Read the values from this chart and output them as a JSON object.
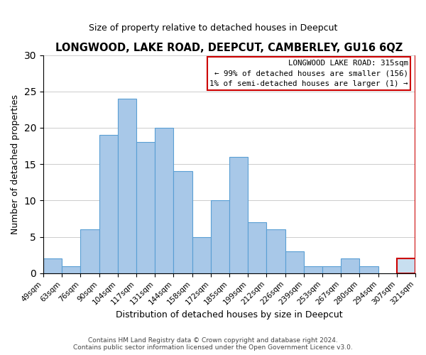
{
  "title": "LONGWOOD, LAKE ROAD, DEEPCUT, CAMBERLEY, GU16 6QZ",
  "subtitle": "Size of property relative to detached houses in Deepcut",
  "xlabel": "Distribution of detached houses by size in Deepcut",
  "ylabel": "Number of detached properties",
  "bar_color": "#a8c8e8",
  "bar_edge_color": "#5a9fd4",
  "highlight_bar_color": "#c8dff0",
  "highlight_bar_edge_color": "#cc0000",
  "bin_labels": [
    "49sqm",
    "63sqm",
    "76sqm",
    "90sqm",
    "104sqm",
    "117sqm",
    "131sqm",
    "144sqm",
    "158sqm",
    "172sqm",
    "185sqm",
    "199sqm",
    "212sqm",
    "226sqm",
    "239sqm",
    "253sqm",
    "267sqm",
    "280sqm",
    "294sqm",
    "307sqm",
    "321sqm"
  ],
  "values": [
    2,
    1,
    6,
    19,
    24,
    18,
    20,
    14,
    5,
    10,
    16,
    7,
    6,
    3,
    1,
    1,
    2,
    1,
    0,
    2
  ],
  "highlight_index": 19,
  "ylim": [
    0,
    30
  ],
  "yticks": [
    0,
    5,
    10,
    15,
    20,
    25,
    30
  ],
  "legend_title": "LONGWOOD LAKE ROAD: 315sqm",
  "legend_line1": "← 99% of detached houses are smaller (156)",
  "legend_line2": "1% of semi-detached houses are larger (1) →",
  "footer1": "Contains HM Land Registry data © Crown copyright and database right 2024.",
  "footer2": "Contains public sector information licensed under the Open Government Licence v3.0."
}
